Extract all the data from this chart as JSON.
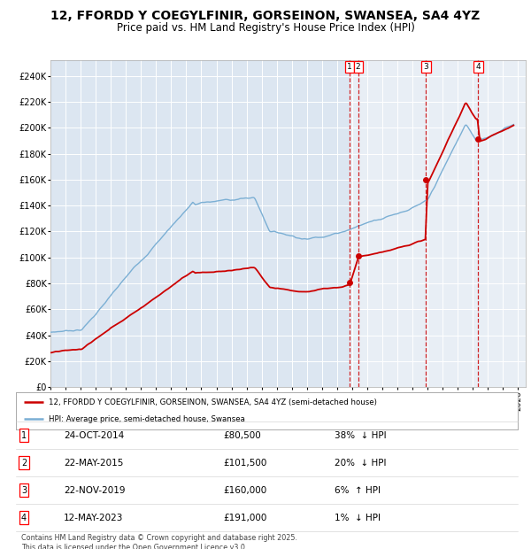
{
  "title": "12, FFORDD Y COEGYLFINIR, GORSEINON, SWANSEA, SA4 4YZ",
  "subtitle": "Price paid vs. HM Land Registry's House Price Index (HPI)",
  "title_fontsize": 10,
  "subtitle_fontsize": 8.5,
  "background_color": "#ffffff",
  "plot_bg_color": "#dce6f1",
  "hpi_color": "#7bafd4",
  "price_color": "#cc0000",
  "ylim": [
    0,
    250000
  ],
  "yticks": [
    0,
    20000,
    40000,
    60000,
    80000,
    100000,
    120000,
    140000,
    160000,
    180000,
    200000,
    220000,
    240000
  ],
  "ytick_labels": [
    "£0",
    "£20K",
    "£40K",
    "£60K",
    "£80K",
    "£100K",
    "£120K",
    "£140K",
    "£160K",
    "£180K",
    "£200K",
    "£220K",
    "£240K"
  ],
  "xlim_start": 1995.0,
  "xlim_end": 2026.5,
  "sales": [
    {
      "num": 1,
      "date": "24-OCT-2014",
      "year": 2014.82,
      "price": 80500,
      "pct": "38%",
      "dir": "↓"
    },
    {
      "num": 2,
      "date": "22-MAY-2015",
      "year": 2015.39,
      "price": 101500,
      "pct": "20%",
      "dir": "↓"
    },
    {
      "num": 3,
      "date": "22-NOV-2019",
      "year": 2019.9,
      "price": 160000,
      "pct": "6%",
      "dir": "↑"
    },
    {
      "num": 4,
      "date": "12-MAY-2023",
      "year": 2023.36,
      "price": 191000,
      "pct": "1%",
      "dir": "↓"
    }
  ],
  "legend_line1": "12, FFORDD Y COEGYLFINIR, GORSEINON, SWANSEA, SA4 4YZ (semi-detached house)",
  "legend_line2": "HPI: Average price, semi-detached house, Swansea",
  "footnote": "Contains HM Land Registry data © Crown copyright and database right 2025.\nThis data is licensed under the Open Government Licence v3.0.",
  "shade_start": 2014.82
}
